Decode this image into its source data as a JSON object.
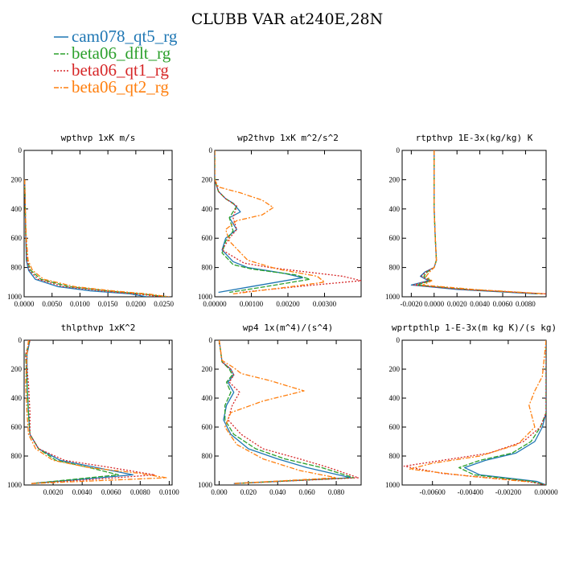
{
  "title": "CLUBB VAR at240E,28N",
  "legend": [
    {
      "name": "cam078_qt5_rg",
      "color": "#1f77b4",
      "dash": "solid"
    },
    {
      "name": "beta06_dflt_rg",
      "color": "#2ca02c",
      "dash": "long"
    },
    {
      "name": "beta06_qt1_rg",
      "color": "#d62728",
      "dash": "dot"
    },
    {
      "name": "beta06_qt2_rg",
      "color": "#ff7f0e",
      "dash": "dashdot"
    }
  ],
  "chart_data": [
    {
      "type": "line",
      "title": "wpthvp  1xK m/s",
      "xlim": [
        0,
        0.0265
      ],
      "ylim": [
        0,
        1000
      ],
      "y_reversed": true,
      "xticks": [
        0,
        0.005,
        0.01,
        0.015,
        0.02,
        0.025
      ],
      "xtick_labels": [
        "0.0000",
        "0.0050",
        "0.0100",
        "0.0150",
        "0.0200",
        "0.0250"
      ],
      "yticks": [
        0,
        200,
        400,
        600,
        800,
        1000
      ],
      "ytick_labels": [
        "0",
        "200",
        "400",
        "600",
        "800",
        "1000"
      ],
      "series": [
        {
          "name": "cam078_qt5_rg",
          "x": [
            0.0001,
            0.0002,
            0.0003,
            0.0004,
            0.0008,
            0.002,
            0.006,
            0.012,
            0.019,
            0.022
          ],
          "y": [
            200,
            400,
            600,
            750,
            820,
            880,
            930,
            960,
            980,
            1000
          ]
        },
        {
          "name": "beta06_dflt_rg",
          "x": [
            0.0001,
            0.0002,
            0.0003,
            0.0005,
            0.0012,
            0.003,
            0.008,
            0.015,
            0.021,
            0.0255
          ],
          "y": [
            200,
            400,
            600,
            750,
            820,
            880,
            930,
            960,
            980,
            1000
          ]
        },
        {
          "name": "beta06_qt1_rg",
          "x": [
            0.0001,
            0.0002,
            0.0003,
            0.0005,
            0.001,
            0.0025,
            0.007,
            0.014,
            0.02,
            0.025
          ],
          "y": [
            200,
            400,
            600,
            750,
            820,
            880,
            930,
            960,
            980,
            1000
          ]
        },
        {
          "name": "beta06_qt2_rg",
          "x": [
            0.0001,
            0.0002,
            0.0004,
            0.0007,
            0.0015,
            0.0035,
            0.009,
            0.016,
            0.022,
            0.026
          ],
          "y": [
            200,
            400,
            600,
            750,
            820,
            880,
            930,
            960,
            980,
            1000
          ]
        }
      ]
    },
    {
      "type": "line",
      "title": "wp2thvp  1xK m^2/s^2",
      "xlim": [
        0,
        0.004
      ],
      "ylim": [
        0,
        1000
      ],
      "y_reversed": true,
      "xticks": [
        0,
        0.001,
        0.002,
        0.003
      ],
      "xtick_labels": [
        "0.00000",
        "0.00100",
        "0.00200",
        "0.00300"
      ],
      "yticks": [
        0,
        200,
        400,
        600,
        800,
        1000
      ],
      "ytick_labels": [
        "0",
        "200",
        "400",
        "600",
        "800",
        "1000"
      ],
      "series": [
        {
          "name": "cam078_qt5_rg",
          "x": [
            0,
            0,
            0.0001,
            0.0003,
            0.0005,
            0.0007,
            0.0004,
            0.0006,
            0.0003,
            0.0002,
            0.0005,
            0.0009,
            0.0014,
            0.0019,
            0.0024,
            0.001,
            0.0001
          ],
          "y": [
            0,
            200,
            280,
            330,
            360,
            420,
            460,
            540,
            600,
            680,
            760,
            800,
            820,
            840,
            870,
            930,
            970
          ]
        },
        {
          "name": "beta06_dflt_rg",
          "x": [
            0,
            0,
            0.0001,
            0.0003,
            0.0006,
            0.0004,
            0.0005,
            0.0003,
            0.0002,
            0.0005,
            0.001,
            0.0016,
            0.0022,
            0.0026,
            0.0014,
            0.0004
          ],
          "y": [
            0,
            200,
            280,
            330,
            380,
            460,
            550,
            620,
            700,
            780,
            810,
            830,
            850,
            880,
            930,
            970
          ]
        },
        {
          "name": "beta06_qt1_rg",
          "x": [
            0,
            0,
            0.0001,
            0.0003,
            0.0006,
            0.0005,
            0.0006,
            0.0004,
            0.0002,
            0.0008,
            0.0015,
            0.0025,
            0.0035,
            0.004,
            0.0027,
            0.0007
          ],
          "y": [
            0,
            200,
            280,
            330,
            380,
            460,
            540,
            600,
            680,
            770,
            800,
            830,
            860,
            890,
            920,
            970
          ]
        },
        {
          "name": "beta06_qt2_rg",
          "x": [
            0,
            0,
            0.0001,
            0.0007,
            0.0013,
            0.0016,
            0.0013,
            0.0006,
            0.0003,
            0.0004,
            0.0009,
            0.0017,
            0.0028,
            0.003,
            0.0018,
            0.0005
          ],
          "y": [
            0,
            200,
            250,
            290,
            340,
            390,
            440,
            480,
            540,
            620,
            750,
            810,
            860,
            900,
            940,
            980
          ]
        }
      ]
    },
    {
      "type": "line",
      "title": "rtpthvp  1E-3x(kg/kg) K",
      "xlim": [
        -0.0028,
        0.0098
      ],
      "ylim": [
        0,
        1000
      ],
      "y_reversed": true,
      "xticks": [
        -0.002,
        0,
        0.002,
        0.004,
        0.006,
        0.008
      ],
      "xtick_labels": [
        "-0.0020",
        "0.0000",
        "0.0020",
        "0.0040",
        "0.0060",
        "0.0080"
      ],
      "yticks": [
        0,
        200,
        400,
        600,
        800,
        1000
      ],
      "ytick_labels": [
        "0",
        "200",
        "400",
        "600",
        "800",
        "1000"
      ],
      "series": [
        {
          "name": "cam078_qt5_rg",
          "x": [
            0,
            0,
            0.0001,
            0.0002,
            0,
            -0.0008,
            -0.0012,
            -0.0005,
            -0.002,
            0.002,
            0.009
          ],
          "y": [
            0,
            400,
            600,
            750,
            800,
            830,
            860,
            890,
            920,
            950,
            980
          ]
        },
        {
          "name": "beta06_dflt_rg",
          "x": [
            0,
            0,
            0.0001,
            0.0002,
            0,
            -0.0006,
            -0.0009,
            -0.0003,
            -0.0015,
            0.003,
            0.0095
          ],
          "y": [
            0,
            400,
            600,
            750,
            800,
            830,
            860,
            890,
            920,
            950,
            980
          ]
        },
        {
          "name": "beta06_qt1_rg",
          "x": [
            0,
            0,
            0.0001,
            0.0002,
            0,
            -0.0007,
            -0.0011,
            -0.0004,
            -0.0018,
            0.0025,
            0.0098
          ],
          "y": [
            0,
            400,
            600,
            750,
            800,
            830,
            860,
            890,
            920,
            950,
            980
          ]
        },
        {
          "name": "beta06_qt2_rg",
          "x": [
            0,
            0,
            0.0001,
            0.0002,
            0,
            -0.0004,
            -0.0007,
            -0.0002,
            -0.001,
            0.0035,
            0.0098
          ],
          "y": [
            0,
            400,
            600,
            750,
            800,
            830,
            860,
            890,
            920,
            950,
            980
          ]
        }
      ]
    },
    {
      "type": "line",
      "title": "thlpthvp  1xK^2",
      "xlim": [
        0,
        0.0102
      ],
      "ylim": [
        0,
        1000
      ],
      "y_reversed": true,
      "xticks": [
        0.002,
        0.004,
        0.006,
        0.008,
        0.01
      ],
      "xtick_labels": [
        "0.0020",
        "0.0040",
        "0.0060",
        "0.0080",
        "0.0100"
      ],
      "yticks": [
        0,
        200,
        400,
        600,
        800,
        1000
      ],
      "ytick_labels": [
        "0",
        "200",
        "400",
        "600",
        "800",
        "1000"
      ],
      "series": [
        {
          "name": "cam078_qt5_rg",
          "x": [
            0.0004,
            0.0002,
            0.0002,
            0.0003,
            0.0004,
            0.001,
            0.0025,
            0.005,
            0.0075,
            0.004,
            0.0005
          ],
          "y": [
            0,
            100,
            300,
            500,
            650,
            750,
            830,
            880,
            930,
            960,
            990
          ]
        },
        {
          "name": "beta06_dflt_rg",
          "x": [
            0.0004,
            0.0001,
            0.0002,
            0.0003,
            0.0004,
            0.001,
            0.0022,
            0.0045,
            0.0065,
            0.0035,
            0.0005
          ],
          "y": [
            0,
            100,
            300,
            500,
            650,
            750,
            830,
            880,
            930,
            960,
            990
          ]
        },
        {
          "name": "beta06_qt1_rg",
          "x": [
            0.0004,
            0.0001,
            0.0003,
            0.0004,
            0.0004,
            0.001,
            0.0028,
            0.006,
            0.009,
            0.005,
            0.0005
          ],
          "y": [
            0,
            100,
            300,
            500,
            650,
            750,
            830,
            880,
            930,
            960,
            990
          ]
        },
        {
          "name": "beta06_qt2_rg",
          "x": [
            0.0003,
            0.0002,
            0.0001,
            0.0002,
            0.0003,
            0.0008,
            0.002,
            0.0045,
            0.008,
            0.0098,
            0.0005
          ],
          "y": [
            0,
            100,
            300,
            500,
            650,
            750,
            830,
            880,
            920,
            950,
            990
          ]
        }
      ]
    },
    {
      "type": "line",
      "title": "wp4  1x(m^4)/(s^4)",
      "xlim": [
        -0.003,
        0.097
      ],
      "ylim": [
        0,
        1000
      ],
      "y_reversed": true,
      "xticks": [
        0,
        0.02,
        0.04,
        0.06,
        0.08
      ],
      "xtick_labels": [
        "0.000",
        "0.020",
        "0.040",
        "0.060",
        "0.080"
      ],
      "yticks": [
        0,
        200,
        400,
        600,
        800,
        1000
      ],
      "ytick_labels": [
        "0",
        "200",
        "400",
        "600",
        "800",
        "1000"
      ],
      "series": [
        {
          "name": "cam078_qt5_rg",
          "x": [
            0,
            0.002,
            0.008,
            0.01,
            0.006,
            0.01,
            0.005,
            0.003,
            0.008,
            0.02,
            0.04,
            0.06,
            0.09,
            0.01
          ],
          "y": [
            0,
            150,
            200,
            240,
            290,
            360,
            450,
            550,
            650,
            750,
            820,
            880,
            950,
            990
          ]
        },
        {
          "name": "beta06_dflt_rg",
          "x": [
            0,
            0.002,
            0.007,
            0.009,
            0.005,
            0.008,
            0.004,
            0.004,
            0.01,
            0.025,
            0.045,
            0.07,
            0.092,
            0.01
          ],
          "y": [
            0,
            150,
            200,
            240,
            290,
            360,
            450,
            550,
            650,
            750,
            820,
            880,
            950,
            990
          ]
        },
        {
          "name": "beta06_qt1_rg",
          "x": [
            0,
            0.002,
            0.008,
            0.01,
            0.007,
            0.014,
            0.009,
            0.006,
            0.015,
            0.03,
            0.055,
            0.075,
            0.095,
            0.01
          ],
          "y": [
            0,
            150,
            200,
            240,
            290,
            360,
            450,
            550,
            650,
            750,
            820,
            880,
            950,
            990
          ]
        },
        {
          "name": "beta06_qt2_rg",
          "x": [
            0,
            0.002,
            0.01,
            0.015,
            0.035,
            0.058,
            0.03,
            0.008,
            0.004,
            0.012,
            0.03,
            0.055,
            0.08,
            0.01
          ],
          "y": [
            0,
            140,
            190,
            230,
            280,
            350,
            420,
            500,
            600,
            720,
            820,
            900,
            950,
            990
          ]
        }
      ]
    },
    {
      "type": "line",
      "title": "wprtpthlp  1-E-3x(m kg K)/(s kg)",
      "xlim": [
        -0.0076,
        0
      ],
      "ylim": [
        0,
        1000
      ],
      "y_reversed": true,
      "xticks": [
        -0.006,
        -0.004,
        -0.002,
        0
      ],
      "xtick_labels": [
        "-0.00600",
        "-0.00400",
        "-0.00200",
        "0.00000"
      ],
      "yticks": [
        0,
        200,
        400,
        600,
        800,
        1000
      ],
      "ytick_labels": [
        "0",
        "200",
        "400",
        "600",
        "800",
        "1000"
      ],
      "series": [
        {
          "name": "cam078_qt5_rg",
          "x": [
            0,
            0,
            -0.0002,
            -0.0006,
            -0.0016,
            -0.0032,
            -0.0043,
            -0.0035,
            -0.0005,
            0
          ],
          "y": [
            0,
            500,
            600,
            700,
            780,
            830,
            880,
            930,
            975,
            1000
          ]
        },
        {
          "name": "beta06_dflt_rg",
          "x": [
            0,
            0,
            -0.0003,
            -0.0008,
            -0.0018,
            -0.0035,
            -0.0046,
            -0.0038,
            -0.0008,
            0
          ],
          "y": [
            0,
            500,
            600,
            700,
            780,
            830,
            880,
            930,
            975,
            1000
          ]
        },
        {
          "name": "beta06_qt1_rg",
          "x": [
            0,
            0,
            -0.0003,
            -0.0012,
            -0.003,
            -0.0055,
            -0.0075,
            -0.0055,
            -0.001,
            0
          ],
          "y": [
            0,
            500,
            600,
            700,
            780,
            830,
            870,
            920,
            975,
            1000
          ]
        },
        {
          "name": "beta06_qt2_rg",
          "x": [
            0,
            -0.0002,
            -0.0006,
            -0.0009,
            -0.0006,
            -0.0015,
            -0.0035,
            -0.006,
            -0.0072,
            -0.004,
            -0.0008
          ],
          "y": [
            0,
            250,
            350,
            450,
            600,
            720,
            800,
            850,
            890,
            940,
            980
          ]
        }
      ]
    }
  ]
}
